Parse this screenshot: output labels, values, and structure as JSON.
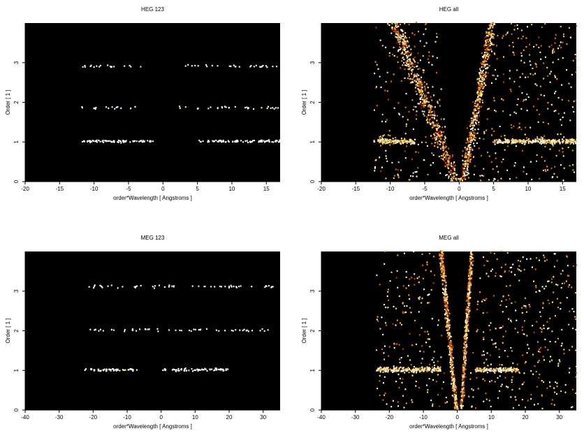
{
  "chart_data": [
    {
      "type": "heatmap",
      "title": "HEG 123",
      "xlabel": "order*Wavelength [ Angstroms ]",
      "ylabel": "Order [ 1 ]",
      "xlim": [
        -20,
        17
      ],
      "ylim": [
        0,
        4
      ],
      "xticks": [
        -20,
        -15,
        -10,
        -5,
        0,
        5,
        10,
        15
      ],
      "yticks": [
        0,
        1,
        2,
        3
      ],
      "colormap": "black-red-yellow-white",
      "background": "#000000",
      "features": [
        {
          "label": "order 1 band",
          "y": 1.0,
          "x_ranges": [
            [
              -12,
              -1.5
            ],
            [
              5,
              17
            ]
          ],
          "density": "medium"
        },
        {
          "label": "order 2 band",
          "y": 1.85,
          "x_ranges": [
            [
              -12,
              -4
            ],
            [
              2,
              17
            ]
          ],
          "density": "sparse"
        },
        {
          "label": "order 3 band",
          "y": 2.9,
          "x_ranges": [
            [
              -12,
              -3
            ],
            [
              3,
              17
            ]
          ],
          "density": "sparse"
        }
      ]
    },
    {
      "type": "heatmap",
      "title": "HEG all",
      "xlabel": "order*Wavelength [ Angstroms ]",
      "ylabel": "Order [ 1 ]",
      "xlim": [
        -20,
        17
      ],
      "ylim": [
        0,
        4
      ],
      "xticks": [
        -20,
        -15,
        -10,
        -5,
        0,
        5,
        10,
        15
      ],
      "yticks": [
        0,
        1,
        2,
        3
      ],
      "colormap": "black-red-yellow-white",
      "background": "#000000",
      "features": [
        {
          "label": "order 1 band",
          "y": 1.0,
          "x_ranges": [
            [
              -12.5,
              -6.5
            ],
            [
              5,
              17
            ]
          ],
          "density": "high"
        },
        {
          "label": "left arm",
          "x_at_y0": -0.5,
          "x_at_ytop": -9.5,
          "density": "high"
        },
        {
          "label": "right arm",
          "x_at_y0": 0.5,
          "x_at_ytop": 4.7,
          "density": "high"
        },
        {
          "label": "scattered background",
          "x_range": [
            -12.5,
            17
          ],
          "density": "medium"
        }
      ]
    },
    {
      "type": "heatmap",
      "title": "MEG 123",
      "xlabel": "order*Wavelength [ Angstroms ]",
      "ylabel": "Order [ 1 ]",
      "xlim": [
        -40,
        35
      ],
      "ylim": [
        0,
        4
      ],
      "xticks": [
        -40,
        -30,
        -20,
        -10,
        0,
        10,
        20,
        30
      ],
      "yticks": [
        0,
        1,
        2,
        3
      ],
      "colormap": "black-red-yellow-white",
      "background": "#000000",
      "features": [
        {
          "label": "order 1 band",
          "y": 1.0,
          "x_ranges": [
            [
              -23,
              -7
            ],
            [
              0,
              20
            ]
          ],
          "density": "medium"
        },
        {
          "label": "order 2 band",
          "y": 2.0,
          "x_ranges": [
            [
              -24,
              32
            ]
          ],
          "density": "sparse"
        },
        {
          "label": "order 3 band",
          "y": 3.1,
          "x_ranges": [
            [
              -23,
              33
            ]
          ],
          "density": "sparse"
        }
      ]
    },
    {
      "type": "heatmap",
      "title": "MEG all",
      "xlabel": "order*Wavelength [ Angstroms ]",
      "ylabel": "Order [ 1 ]",
      "xlim": [
        -40,
        35
      ],
      "ylim": [
        0,
        4
      ],
      "xticks": [
        -40,
        -30,
        -20,
        -10,
        0,
        10,
        20,
        30
      ],
      "yticks": [
        0,
        1,
        2,
        3
      ],
      "colormap": "black-red-yellow-white",
      "background": "#000000",
      "features": [
        {
          "label": "order 1 band",
          "y": 1.0,
          "x_ranges": [
            [
              -24,
              -5
            ],
            [
              5,
              18
            ]
          ],
          "density": "high"
        },
        {
          "label": "left arm",
          "x_at_y0": -0.5,
          "x_at_ytop": -5,
          "density": "high"
        },
        {
          "label": "right arm",
          "x_at_y0": 1,
          "x_at_ytop": 4,
          "density": "high"
        },
        {
          "label": "scattered background",
          "x_range": [
            -24,
            35
          ],
          "density": "medium"
        }
      ]
    }
  ]
}
